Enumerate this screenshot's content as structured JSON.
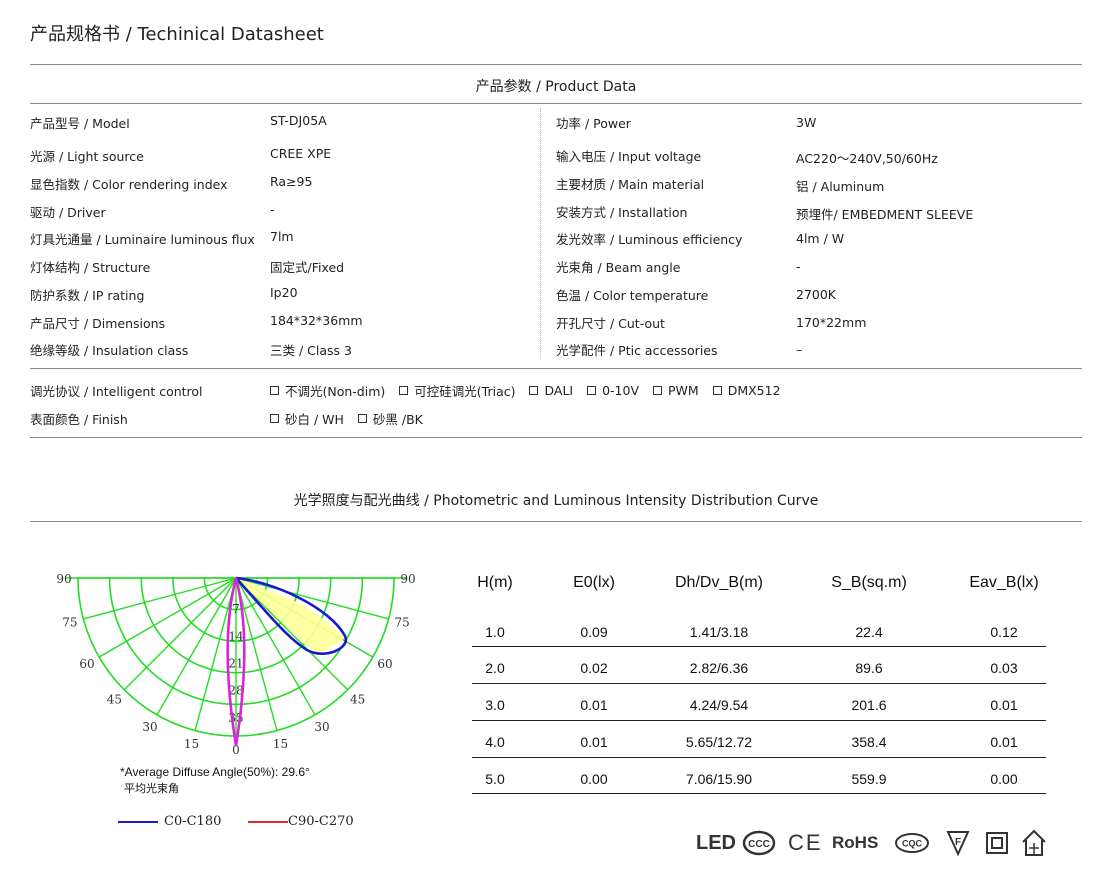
{
  "page_title": "产品规格书 / Techinical Datasheet",
  "product_data": {
    "title": "产品参数 / Product Data",
    "left": [
      {
        "label": "产品型号 / Model",
        "value": "ST-DJ05A"
      },
      {
        "label": "光源 / Light source",
        "value": "CREE XPE"
      },
      {
        "label": "显色指数 / Color rendering index",
        "value": "Ra≥95"
      },
      {
        "label": "驱动 / Driver",
        "value": "-"
      },
      {
        "label": "灯具光通量 / Luminaire luminous flux",
        "value": "7lm"
      },
      {
        "label": "灯体结构 / Structure",
        "value": "固定式/Fixed"
      },
      {
        "label": "防护系数 / IP rating",
        "value": "Ip20"
      },
      {
        "label": "产品尺寸 / Dimensions",
        "value": "184*32*36mm"
      },
      {
        "label": "绝缘等级 / Insulation class",
        "value": "三类 / Class 3"
      }
    ],
    "right": [
      {
        "label": "功率 / Power",
        "value": "3W"
      },
      {
        "label": "输入电压 / Input voltage",
        "value": "AC220～240V,50/60Hz"
      },
      {
        "label": "主要材质 / Main material",
        "value": "铝 / Aluminum"
      },
      {
        "label": "安装方式 / Installation",
        "value": "预埋件/ EMBEDMENT SLEEVE"
      },
      {
        "label": "发光效率 / Luminous efficiency",
        "value": "4lm / W"
      },
      {
        "label": "光束角 / Beam angle",
        "value": "-"
      },
      {
        "label": "色温 / Color temperature",
        "value": "2700K"
      },
      {
        "label": "开孔尺寸 / Cut-out",
        "value": "170*22mm"
      },
      {
        "label": "光学配件 / Ptic accessories",
        "value": "–"
      }
    ]
  },
  "control": {
    "label": "调光协议 / Intelligent control",
    "options": [
      "不调光(Non-dim)",
      "可控硅调光(Triac)",
      "DALI",
      "0-10V",
      "PWM",
      "DMX512"
    ]
  },
  "finish": {
    "label": "表面颜色 / Finish",
    "options": [
      "砂白 / WH",
      "砂黑 /BK"
    ]
  },
  "photometric": {
    "title": "光学照度与配光曲线 / Photometric and Luminous Intensity Distribution Curve",
    "polar": {
      "angle_labels": [
        "90",
        "75",
        "60",
        "45",
        "30",
        "15",
        "0",
        "15",
        "30",
        "45",
        "60",
        "75",
        "90"
      ],
      "radial_labels": [
        "7",
        "14",
        "21",
        "28",
        "35"
      ],
      "colors": {
        "grid": "#22dd22",
        "c0": "#1a1acc",
        "c90": "#ee2222",
        "c90_drawn": "#dd22dd",
        "fill": "#ffff99"
      }
    },
    "note_line1": "*Average Diffuse Angle(50%): 29.6°",
    "note_line2": "平均光束角",
    "legend": [
      {
        "label": "C0-C180",
        "color": "#1a1acc"
      },
      {
        "label": "C90-C270",
        "color": "#ee2222"
      }
    ]
  },
  "table": {
    "headers": [
      "H(m)",
      "E0(lx)",
      "Dh/Dv_B(m)",
      "S_B(sq.m)",
      "Eav_B(lx)"
    ],
    "rows": [
      [
        "1.0",
        "0.09",
        "1.41/3.18",
        "22.4",
        "0.12"
      ],
      [
        "2.0",
        "0.02",
        "2.82/6.36",
        "89.6",
        "0.03"
      ],
      [
        "3.0",
        "0.01",
        "4.24/9.54",
        "201.6",
        "0.01"
      ],
      [
        "4.0",
        "0.01",
        "5.65/12.72",
        "358.4",
        "0.01"
      ],
      [
        "5.0",
        "0.00",
        "7.06/15.90",
        "559.9",
        "0.00"
      ]
    ]
  },
  "certifications": {
    "led": "LED",
    "ccc": "CCC",
    "ce": "CE",
    "rohs": "RoHS",
    "cqc": "CQC",
    "f_mark": "F"
  }
}
